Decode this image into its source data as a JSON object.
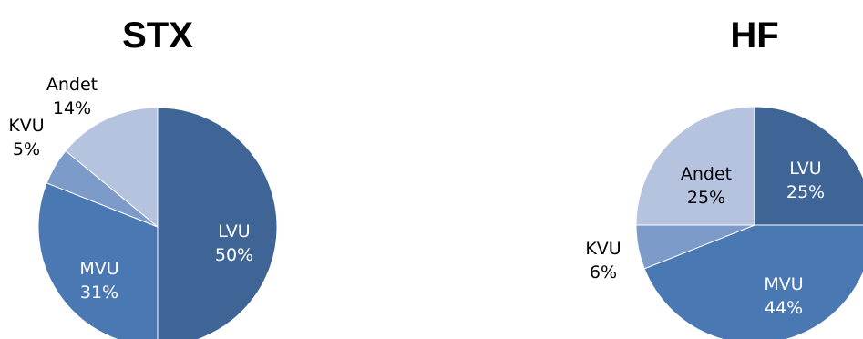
{
  "chart_data": [
    {
      "type": "pie",
      "title": "STX",
      "slices": [
        {
          "label": "LVU",
          "value": 50,
          "pct_label": "50%",
          "color": "#3F6597"
        },
        {
          "label": "MVU",
          "value": 31,
          "pct_label": "31%",
          "color": "#4A78B2"
        },
        {
          "label": "KVU",
          "value": 5,
          "pct_label": "5%",
          "color": "#7D9BC9"
        },
        {
          "label": "Andet",
          "value": 14,
          "pct_label": "14%",
          "color": "#B6C3DF"
        }
      ]
    },
    {
      "type": "pie",
      "title": "HF",
      "slices": [
        {
          "label": "LVU",
          "value": 25,
          "pct_label": "25%",
          "color": "#3F6597"
        },
        {
          "label": "MVU",
          "value": 44,
          "pct_label": "44%",
          "color": "#4A78B2"
        },
        {
          "label": "KVU",
          "value": 6,
          "pct_label": "6%",
          "color": "#7D9BC9"
        },
        {
          "label": "Andet",
          "value": 25,
          "pct_label": "25%",
          "color": "#B6C3DF"
        }
      ]
    }
  ]
}
